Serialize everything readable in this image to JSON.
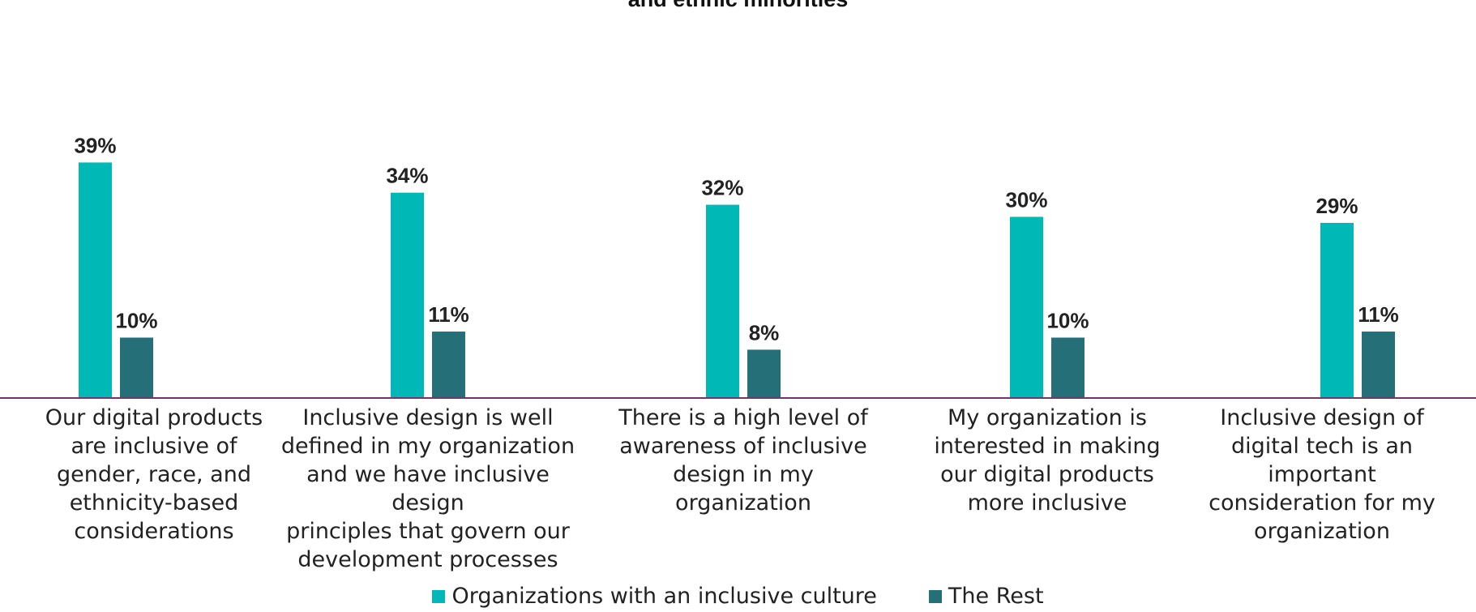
{
  "chart_data": {
    "type": "bar",
    "title": "and ethnic minorities",
    "categories": [
      "Our digital products are inclusive of gender, race, and ethnicity-based considerations",
      "Inclusive design is well defined in my organization and we have inclusive design principles that govern our development processes",
      "There is a high level of awareness of inclusive design in my organization",
      "My organization is interested in making our digital products more inclusive",
      "Inclusive design of digital tech is an important consideration for my organization"
    ],
    "category_lines": [
      [
        "Our digital products",
        "are inclusive of",
        "gender, race, and",
        "ethnicity-based",
        "considerations"
      ],
      [
        "Inclusive design is well",
        "defined in my organization",
        "and we have inclusive design",
        "principles that govern our",
        "development processes"
      ],
      [
        "There is a high level of",
        "awareness of inclusive",
        "design in my",
        "organization"
      ],
      [
        "My organization is",
        "interested in making",
        "our digital products",
        "more inclusive"
      ],
      [
        "Inclusive design of",
        "digital tech is an",
        "important",
        "consideration for my",
        "organization"
      ]
    ],
    "series": [
      {
        "name": "Organizations with an inclusive culture",
        "values": [
          39,
          34,
          32,
          30,
          29
        ],
        "color": "#00b8b5"
      },
      {
        "name": "The Rest",
        "values": [
          10,
          11,
          8,
          10,
          11
        ],
        "color": "#256f78"
      }
    ],
    "value_suffix": "%",
    "ylim": [
      0,
      40
    ],
    "grid": false,
    "legend_position": "bottom-center",
    "axis_color": "#6b3a6b"
  }
}
